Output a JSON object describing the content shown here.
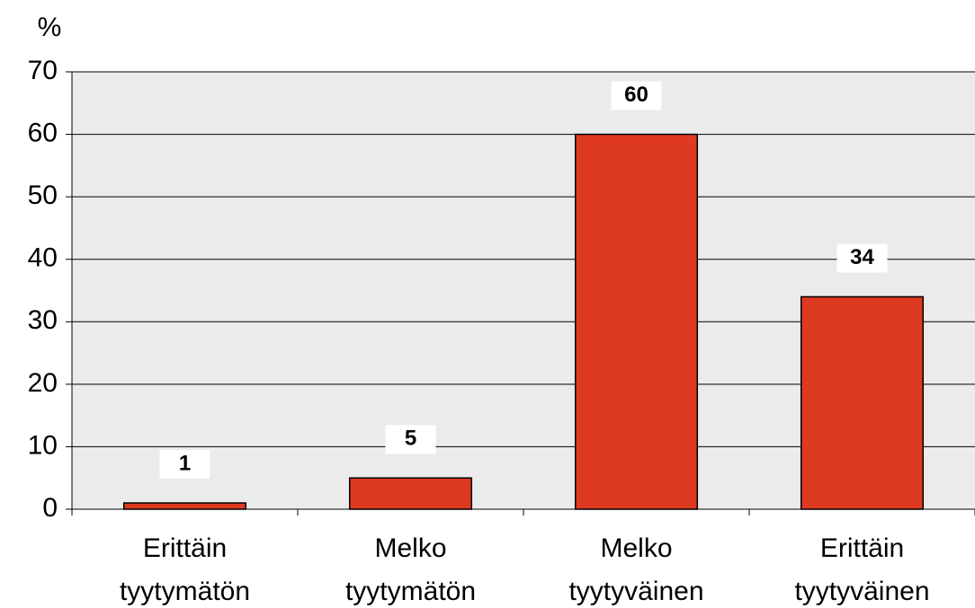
{
  "chart_data": {
    "type": "bar",
    "y_label": "%",
    "categories": [
      [
        "Erittäin",
        "tyytymätön"
      ],
      [
        "Melko",
        "tyytymätön"
      ],
      [
        "Melko",
        "tyytyväinen"
      ],
      [
        "Erittäin",
        "tyytyväinen"
      ]
    ],
    "values": [
      1,
      5,
      60,
      34
    ],
    "color": "#dd3a21",
    "ylim": [
      0,
      70
    ],
    "yticks": [
      0,
      10,
      20,
      30,
      40,
      50,
      60,
      70
    ],
    "grid": true
  }
}
